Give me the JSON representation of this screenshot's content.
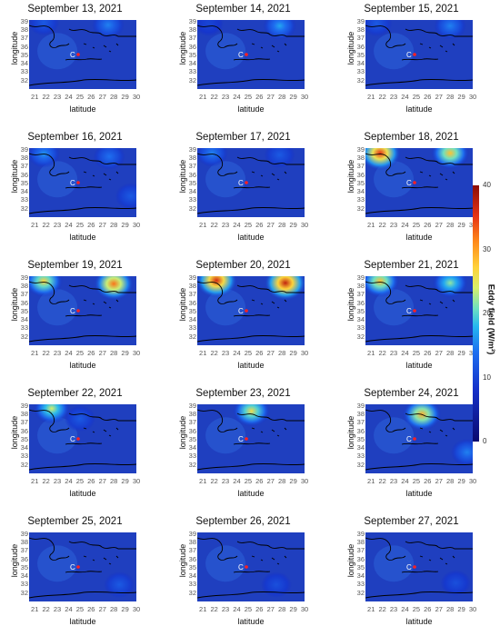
{
  "chart_data": {
    "type": "heatmap",
    "panels": [
      {
        "title": "September 13, 2021",
        "hotspots": [
          {
            "lon": 21.8,
            "lat": 38.9,
            "value": 12
          },
          {
            "lon": 27.5,
            "lat": 38.6,
            "value": 15
          }
        ]
      },
      {
        "title": "September 14, 2021",
        "hotspots": [
          {
            "lon": 21.5,
            "lat": 38.8,
            "value": 10
          },
          {
            "lon": 27.8,
            "lat": 38.5,
            "value": 17
          }
        ]
      },
      {
        "title": "September 15, 2021",
        "hotspots": [
          {
            "lon": 21.5,
            "lat": 38.8,
            "value": 12
          },
          {
            "lon": 28.0,
            "lat": 38.5,
            "value": 15
          }
        ]
      },
      {
        "title": "September 16, 2021",
        "hotspots": [
          {
            "lon": 21.8,
            "lat": 38.5,
            "value": 16
          },
          {
            "lon": 27.6,
            "lat": 38.2,
            "value": 14
          },
          {
            "lon": 29.5,
            "lat": 33.5,
            "value": 12
          }
        ]
      },
      {
        "title": "September 17, 2021",
        "hotspots": [
          {
            "lon": 21.8,
            "lat": 38.6,
            "value": 15
          },
          {
            "lon": 27.8,
            "lat": 38.4,
            "value": 12
          }
        ]
      },
      {
        "title": "September 18, 2021",
        "hotspots": [
          {
            "lon": 21.8,
            "lat": 38.6,
            "value": 35
          },
          {
            "lon": 28.0,
            "lat": 38.6,
            "value": 28
          }
        ]
      },
      {
        "title": "September 19, 2021",
        "hotspots": [
          {
            "lon": 21.8,
            "lat": 38.6,
            "value": 27
          },
          {
            "lon": 28.0,
            "lat": 38.3,
            "value": 32
          }
        ]
      },
      {
        "title": "September 20, 2021",
        "hotspots": [
          {
            "lon": 22.2,
            "lat": 38.7,
            "value": 36
          },
          {
            "lon": 28.3,
            "lat": 38.4,
            "value": 37
          }
        ]
      },
      {
        "title": "September 21, 2021",
        "hotspots": [
          {
            "lon": 21.8,
            "lat": 38.6,
            "value": 28
          },
          {
            "lon": 28.0,
            "lat": 38.4,
            "value": 22
          }
        ]
      },
      {
        "title": "September 22, 2021",
        "hotspots": [
          {
            "lon": 22.5,
            "lat": 38.7,
            "value": 24
          },
          {
            "lon": 25.0,
            "lat": 37.5,
            "value": 12
          }
        ]
      },
      {
        "title": "September 23, 2021",
        "hotspots": [
          {
            "lon": 25.3,
            "lat": 38.4,
            "value": 26
          }
        ]
      },
      {
        "title": "September 24, 2021",
        "hotspots": [
          {
            "lon": 25.5,
            "lat": 38.0,
            "value": 29
          },
          {
            "lon": 29.5,
            "lat": 33.5,
            "value": 15
          }
        ]
      },
      {
        "title": "September 25, 2021",
        "hotspots": [
          {
            "lon": 28.5,
            "lat": 33.0,
            "value": 12
          }
        ]
      },
      {
        "title": "September 26, 2021",
        "hotspots": [
          {
            "lon": 27.5,
            "lat": 33.0,
            "value": 11
          }
        ]
      },
      {
        "title": "September 27, 2021",
        "hotspots": [
          {
            "lon": 28.5,
            "lat": 33.2,
            "value": 11
          }
        ]
      }
    ],
    "xlabel": "latitude",
    "ylabel": "longitude",
    "xticks": [
      "21",
      "22",
      "23",
      "24",
      "25",
      "26",
      "27",
      "28",
      "29",
      "30"
    ],
    "yticks": [
      "39",
      "38",
      "37",
      "36",
      "35",
      "34",
      "33",
      "32"
    ],
    "xlim": [
      20.5,
      30
    ],
    "ylim": [
      31,
      39.2
    ],
    "marker_label": "C",
    "colorbar": {
      "label": "Eddy field (W/m²)",
      "ticks": [
        "40",
        "30",
        "20",
        "10",
        "0"
      ],
      "range": [
        0,
        40
      ]
    },
    "colors": {
      "background": "#1f3fbf",
      "low": "#0a0a6e",
      "high": "#8a0d06"
    }
  }
}
